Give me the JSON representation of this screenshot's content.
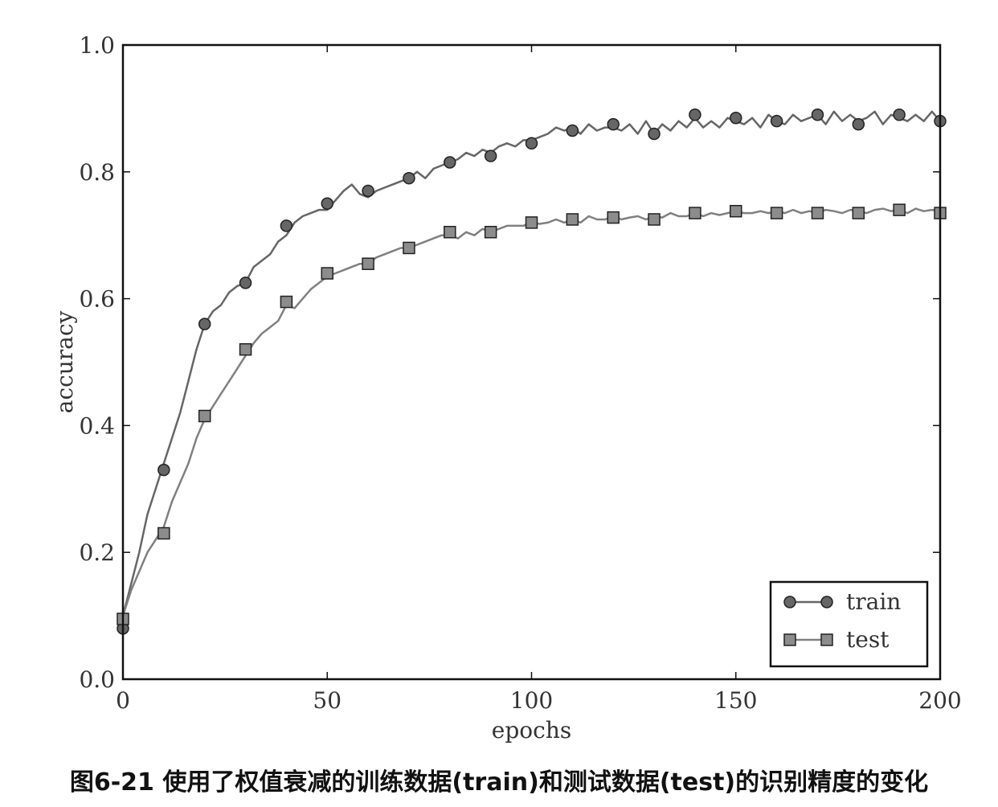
{
  "caption": "图6-21 使用了权值衰减的训练数据(train)和测试数据(test)的识别精度的变化",
  "chart_data": {
    "type": "line",
    "xlabel": "epochs",
    "ylabel": "accuracy",
    "xlim": [
      0,
      200
    ],
    "ylim": [
      0.0,
      1.0
    ],
    "xticks": [
      0,
      50,
      100,
      150,
      200
    ],
    "yticks": [
      "0.0",
      "0.2",
      "0.4",
      "0.6",
      "0.8",
      "1.0"
    ],
    "grid": false,
    "legend_position": "bottom-right",
    "series": [
      {
        "name": "train",
        "marker": "circle",
        "color": "#666666",
        "marker_color": "#666666",
        "x": [
          0,
          2,
          4,
          6,
          8,
          10,
          12,
          14,
          16,
          18,
          20,
          22,
          24,
          26,
          28,
          30,
          32,
          34,
          36,
          38,
          40,
          42,
          44,
          46,
          48,
          50,
          52,
          54,
          56,
          58,
          60,
          62,
          64,
          66,
          68,
          70,
          72,
          74,
          76,
          78,
          80,
          82,
          84,
          86,
          88,
          90,
          92,
          94,
          96,
          98,
          100,
          102,
          104,
          106,
          108,
          110,
          112,
          114,
          116,
          118,
          120,
          122,
          124,
          126,
          128,
          130,
          132,
          134,
          136,
          138,
          140,
          142,
          144,
          146,
          148,
          150,
          152,
          154,
          156,
          158,
          160,
          162,
          164,
          166,
          168,
          170,
          172,
          174,
          176,
          178,
          180,
          182,
          184,
          186,
          188,
          190,
          192,
          194,
          196,
          198,
          200
        ],
        "y": [
          0.1,
          0.15,
          0.2,
          0.26,
          0.3,
          0.34,
          0.38,
          0.42,
          0.47,
          0.52,
          0.56,
          0.58,
          0.59,
          0.61,
          0.62,
          0.625,
          0.65,
          0.66,
          0.67,
          0.69,
          0.7,
          0.72,
          0.73,
          0.735,
          0.74,
          0.74,
          0.755,
          0.77,
          0.78,
          0.765,
          0.76,
          0.77,
          0.775,
          0.78,
          0.785,
          0.79,
          0.8,
          0.79,
          0.805,
          0.81,
          0.815,
          0.82,
          0.83,
          0.825,
          0.835,
          0.83,
          0.84,
          0.845,
          0.84,
          0.85,
          0.85,
          0.855,
          0.86,
          0.87,
          0.865,
          0.87,
          0.86,
          0.875,
          0.865,
          0.87,
          0.87,
          0.865,
          0.875,
          0.86,
          0.88,
          0.86,
          0.875,
          0.865,
          0.88,
          0.87,
          0.885,
          0.87,
          0.88,
          0.87,
          0.885,
          0.88,
          0.875,
          0.885,
          0.87,
          0.89,
          0.88,
          0.875,
          0.89,
          0.88,
          0.885,
          0.89,
          0.875,
          0.895,
          0.88,
          0.89,
          0.88,
          0.885,
          0.895,
          0.875,
          0.89,
          0.885,
          0.88,
          0.89,
          0.88,
          0.895,
          0.88
        ],
        "marker_x": [
          0,
          10,
          20,
          30,
          40,
          50,
          60,
          70,
          80,
          90,
          100,
          110,
          120,
          130,
          140,
          150,
          160,
          170,
          180,
          190,
          200
        ],
        "marker_y": [
          0.08,
          0.33,
          0.56,
          0.625,
          0.715,
          0.75,
          0.77,
          0.79,
          0.815,
          0.825,
          0.845,
          0.865,
          0.875,
          0.86,
          0.89,
          0.885,
          0.88,
          0.89,
          0.875,
          0.89,
          0.88
        ]
      },
      {
        "name": "test",
        "marker": "square",
        "color": "#808080",
        "marker_color": "#8c8c8c",
        "x": [
          0,
          2,
          4,
          6,
          8,
          10,
          12,
          14,
          16,
          18,
          20,
          22,
          24,
          26,
          28,
          30,
          32,
          34,
          36,
          38,
          40,
          42,
          44,
          46,
          48,
          50,
          52,
          54,
          56,
          58,
          60,
          62,
          64,
          66,
          68,
          70,
          72,
          74,
          76,
          78,
          80,
          82,
          84,
          86,
          88,
          90,
          92,
          94,
          96,
          98,
          100,
          102,
          104,
          106,
          108,
          110,
          112,
          114,
          116,
          118,
          120,
          122,
          124,
          126,
          128,
          130,
          132,
          134,
          136,
          138,
          140,
          142,
          144,
          146,
          148,
          150,
          152,
          154,
          156,
          158,
          160,
          162,
          164,
          166,
          168,
          170,
          172,
          174,
          176,
          178,
          180,
          182,
          184,
          186,
          188,
          190,
          192,
          194,
          196,
          198,
          200
        ],
        "y": [
          0.1,
          0.14,
          0.17,
          0.2,
          0.22,
          0.24,
          0.28,
          0.31,
          0.34,
          0.38,
          0.41,
          0.43,
          0.45,
          0.47,
          0.49,
          0.51,
          0.53,
          0.545,
          0.555,
          0.565,
          0.59,
          0.585,
          0.6,
          0.615,
          0.625,
          0.635,
          0.64,
          0.645,
          0.65,
          0.655,
          0.655,
          0.665,
          0.67,
          0.675,
          0.68,
          0.68,
          0.685,
          0.69,
          0.695,
          0.7,
          0.7,
          0.695,
          0.705,
          0.7,
          0.71,
          0.705,
          0.71,
          0.715,
          0.715,
          0.715,
          0.72,
          0.718,
          0.72,
          0.725,
          0.72,
          0.725,
          0.72,
          0.73,
          0.725,
          0.725,
          0.73,
          0.725,
          0.728,
          0.73,
          0.725,
          0.73,
          0.728,
          0.735,
          0.73,
          0.73,
          0.735,
          0.73,
          0.735,
          0.732,
          0.735,
          0.738,
          0.735,
          0.735,
          0.738,
          0.735,
          0.738,
          0.735,
          0.74,
          0.735,
          0.738,
          0.735,
          0.74,
          0.738,
          0.735,
          0.74,
          0.738,
          0.735,
          0.74,
          0.742,
          0.738,
          0.74,
          0.735,
          0.742,
          0.738,
          0.74,
          0.738
        ],
        "marker_x": [
          0,
          10,
          20,
          30,
          40,
          50,
          60,
          70,
          80,
          90,
          100,
          110,
          120,
          130,
          140,
          150,
          160,
          170,
          180,
          190,
          200
        ],
        "marker_y": [
          0.095,
          0.23,
          0.415,
          0.52,
          0.595,
          0.64,
          0.655,
          0.68,
          0.705,
          0.705,
          0.72,
          0.725,
          0.728,
          0.725,
          0.735,
          0.738,
          0.735,
          0.735,
          0.735,
          0.74,
          0.735
        ]
      }
    ]
  }
}
